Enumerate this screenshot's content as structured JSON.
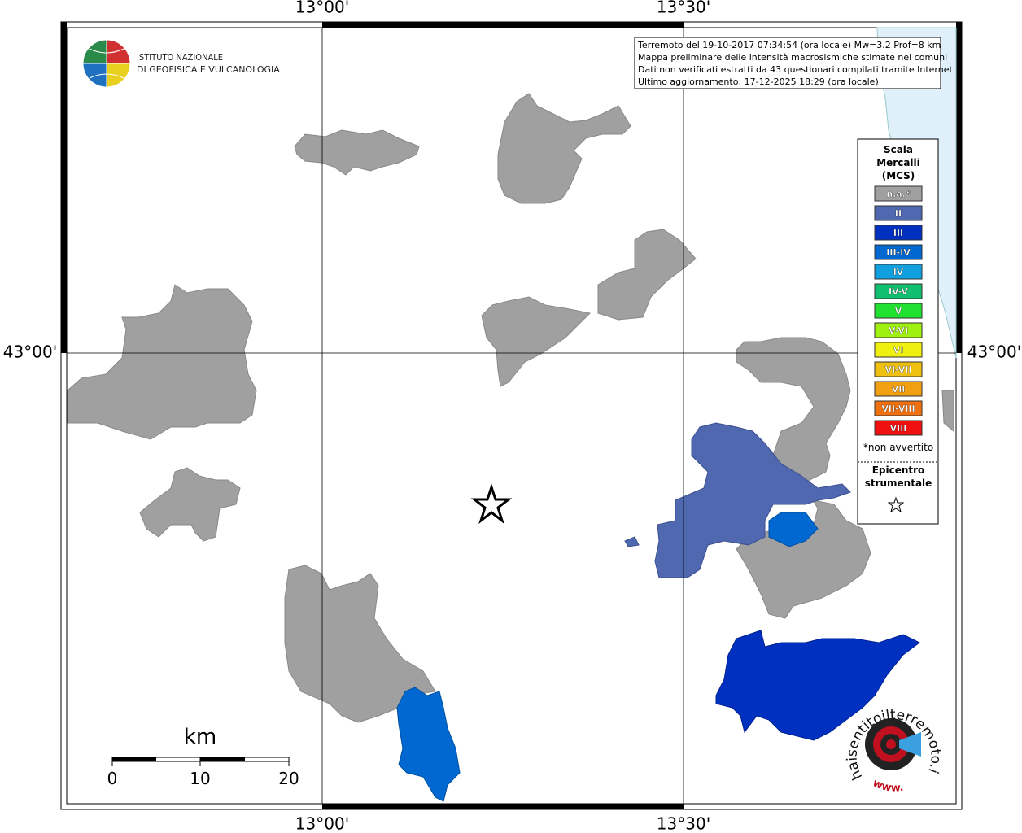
{
  "axis_labels": {
    "top": [
      "13°00'",
      "13°30'"
    ],
    "bottom": [
      "13°00'",
      "13°30'"
    ],
    "left": [
      "43°00'"
    ],
    "right": [
      "43°00'"
    ]
  },
  "logo": {
    "lines": [
      "ISTITUTO NAZIONALE",
      "DI GEOFISICA E VULCANOLOGIA"
    ]
  },
  "info_box": {
    "lines": [
      "Terremoto del 19-10-2017 07:34:54 (ora locale) Mw=3.2 Prof=8 km",
      "Mappa preliminare delle intensità macrosismiche stimate nei comuni",
      "Dati non verificati estratti da 43 questionari compilati tramite Internet.",
      "Ultimo aggiornamento: 17-12-2025 18:29 (ora locale)"
    ]
  },
  "legend": {
    "title": [
      "Scala",
      "Mercalli",
      "(MCS)"
    ],
    "items": [
      {
        "label": "n.a.*",
        "color": "#a0a0a0"
      },
      {
        "label": "II",
        "color": "#5068b0"
      },
      {
        "label": "III",
        "color": "#0030c0"
      },
      {
        "label": "III-IV",
        "color": "#0068d0"
      },
      {
        "label": "IV",
        "color": "#10a0e0"
      },
      {
        "label": "IV-V",
        "color": "#10c070"
      },
      {
        "label": "V",
        "color": "#20e030"
      },
      {
        "label": "V-VI",
        "color": "#a0f010"
      },
      {
        "label": "VI",
        "color": "#f0f010"
      },
      {
        "label": "VI-VII",
        "color": "#f0c010"
      },
      {
        "label": "VII",
        "color": "#f0a010"
      },
      {
        "label": "VII-VIII",
        "color": "#f07010"
      },
      {
        "label": "VIII",
        "color": "#f01010"
      }
    ],
    "note": "*non avvertito",
    "epicenter": [
      "Epicentro",
      "strumentale"
    ]
  },
  "scale_bar": {
    "unit": "km",
    "labels": [
      "0",
      "10",
      "20"
    ]
  },
  "watermark": {
    "site": "haisentitoilterremoto.it",
    "prefix": "www."
  }
}
